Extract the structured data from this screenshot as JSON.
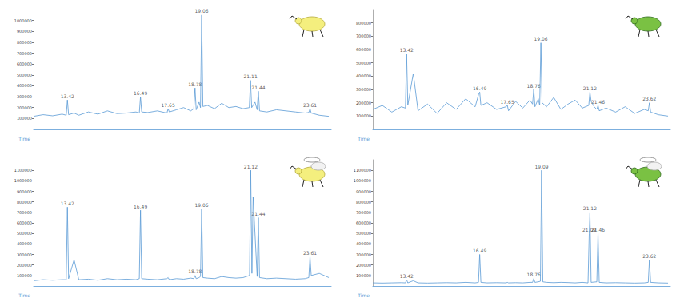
{
  "chart_data": [
    {
      "type": "line",
      "color": "#5b9bd5",
      "xlabel": "Time",
      "tick_labels": "y",
      "xlim": [
        12,
        24.5
      ],
      "ylim": [
        0,
        1100000
      ],
      "yticks": [
        100000,
        200000,
        300000,
        400000,
        500000,
        600000,
        700000,
        800000,
        900000,
        1000000
      ],
      "x": [
        12.0,
        12.4,
        12.8,
        13.2,
        13.37,
        13.42,
        13.47,
        13.7,
        13.9,
        14.3,
        14.7,
        15.1,
        15.5,
        15.9,
        16.3,
        16.44,
        16.49,
        16.54,
        16.8,
        17.2,
        17.6,
        17.65,
        17.7,
        18.0,
        18.3,
        18.6,
        18.73,
        18.78,
        18.83,
        18.95,
        19.01,
        19.06,
        19.11,
        19.3,
        19.6,
        19.9,
        20.2,
        20.5,
        20.8,
        21.06,
        21.11,
        21.16,
        21.3,
        21.39,
        21.44,
        21.49,
        21.8,
        22.2,
        22.6,
        23.0,
        23.4,
        23.56,
        23.61,
        23.66,
        24.0,
        24.4
      ],
      "values": [
        120000,
        135000,
        125000,
        140000,
        130000,
        270000,
        135000,
        150000,
        130000,
        160000,
        140000,
        170000,
        145000,
        150000,
        160000,
        150000,
        300000,
        160000,
        155000,
        170000,
        150000,
        190000,
        160000,
        180000,
        200000,
        170000,
        190000,
        380000,
        180000,
        250000,
        200000,
        1050000,
        210000,
        220000,
        190000,
        240000,
        200000,
        210000,
        190000,
        200000,
        450000,
        200000,
        250000,
        180000,
        350000,
        170000,
        160000,
        180000,
        170000,
        160000,
        150000,
        155000,
        190000,
        150000,
        130000,
        120000
      ],
      "annotations": [
        {
          "x": 13.42,
          "y": 270000,
          "text": "13.42"
        },
        {
          "x": 16.49,
          "y": 300000,
          "text": "16.49"
        },
        {
          "x": 17.65,
          "y": 190000,
          "text": "17.65"
        },
        {
          "x": 18.78,
          "y": 380000,
          "text": "18.78"
        },
        {
          "x": 19.06,
          "y": 1050000,
          "text": "19.06"
        },
        {
          "x": 21.11,
          "y": 450000,
          "text": "21.11"
        },
        {
          "x": 21.44,
          "y": 350000,
          "text": "21.44"
        },
        {
          "x": 23.61,
          "y": 190000,
          "text": "23.61"
        }
      ]
    },
    {
      "type": "line",
      "color": "#5b9bd5",
      "xlabel": "Time",
      "tick_labels": "y",
      "xlim": [
        12,
        24.5
      ],
      "ylim": [
        0,
        900000
      ],
      "yticks": [
        100000,
        200000,
        300000,
        400000,
        500000,
        600000,
        700000,
        800000
      ],
      "x": [
        12.0,
        12.4,
        12.8,
        13.2,
        13.37,
        13.42,
        13.47,
        13.7,
        13.9,
        14.3,
        14.7,
        15.1,
        15.5,
        15.9,
        16.3,
        16.44,
        16.49,
        16.54,
        16.8,
        17.2,
        17.6,
        17.65,
        17.7,
        18.0,
        18.3,
        18.6,
        18.71,
        18.76,
        18.81,
        18.95,
        19.01,
        19.06,
        19.11,
        19.3,
        19.6,
        19.9,
        20.2,
        20.5,
        20.8,
        21.07,
        21.12,
        21.17,
        21.3,
        21.41,
        21.46,
        21.51,
        21.8,
        22.2,
        22.6,
        23.0,
        23.4,
        23.57,
        23.62,
        23.67,
        24.0,
        24.4
      ],
      "values": [
        150000,
        180000,
        130000,
        170000,
        160000,
        570000,
        180000,
        420000,
        140000,
        190000,
        120000,
        200000,
        150000,
        230000,
        170000,
        260000,
        280000,
        180000,
        200000,
        150000,
        170000,
        180000,
        140000,
        210000,
        160000,
        220000,
        190000,
        300000,
        170000,
        230000,
        180000,
        650000,
        200000,
        170000,
        240000,
        150000,
        190000,
        220000,
        160000,
        180000,
        280000,
        210000,
        170000,
        150000,
        180000,
        140000,
        160000,
        130000,
        170000,
        120000,
        150000,
        140000,
        200000,
        130000,
        110000,
        100000
      ],
      "annotations": [
        {
          "x": 13.42,
          "y": 570000,
          "text": "13.42"
        },
        {
          "x": 16.49,
          "y": 280000,
          "text": "16.49"
        },
        {
          "x": 17.65,
          "y": 180000,
          "text": "17.65"
        },
        {
          "x": 18.76,
          "y": 300000,
          "text": "18.76"
        },
        {
          "x": 19.06,
          "y": 650000,
          "text": "19.06"
        },
        {
          "x": 21.12,
          "y": 280000,
          "text": "21.12"
        },
        {
          "x": 21.46,
          "y": 180000,
          "text": "21.46"
        },
        {
          "x": 23.62,
          "y": 200000,
          "text": "23.62"
        }
      ]
    },
    {
      "type": "line",
      "color": "#5b9bd5",
      "xlabel": "Time",
      "tick_labels": "y",
      "xlim": [
        12,
        24.5
      ],
      "ylim": [
        0,
        1200000
      ],
      "yticks": [
        100000,
        200000,
        300000,
        400000,
        500000,
        600000,
        700000,
        800000,
        900000,
        1000000,
        1100000
      ],
      "x": [
        12.0,
        12.4,
        12.8,
        13.2,
        13.37,
        13.42,
        13.47,
        13.7,
        13.9,
        14.3,
        14.7,
        15.1,
        15.5,
        15.9,
        16.3,
        16.44,
        16.49,
        16.54,
        16.8,
        17.2,
        17.6,
        17.65,
        17.7,
        18.0,
        18.3,
        18.6,
        18.73,
        18.78,
        18.83,
        18.95,
        19.01,
        19.06,
        19.11,
        19.3,
        19.6,
        19.9,
        20.2,
        20.5,
        20.8,
        21.07,
        21.12,
        21.17,
        21.22,
        21.39,
        21.44,
        21.49,
        21.8,
        22.2,
        22.6,
        23.0,
        23.4,
        23.56,
        23.61,
        23.66,
        24.0,
        24.4
      ],
      "values": [
        50000,
        60000,
        55000,
        60000,
        60000,
        750000,
        70000,
        250000,
        60000,
        65000,
        55000,
        70000,
        60000,
        65000,
        60000,
        70000,
        720000,
        70000,
        65000,
        60000,
        70000,
        80000,
        60000,
        70000,
        65000,
        75000,
        70000,
        100000,
        70000,
        80000,
        90000,
        730000,
        80000,
        75000,
        70000,
        90000,
        80000,
        75000,
        80000,
        100000,
        1100000,
        120000,
        850000,
        90000,
        650000,
        80000,
        70000,
        75000,
        70000,
        65000,
        70000,
        80000,
        280000,
        100000,
        120000,
        80000
      ],
      "annotations": [
        {
          "x": 13.42,
          "y": 750000,
          "text": "13.42"
        },
        {
          "x": 16.49,
          "y": 720000,
          "text": "16.49"
        },
        {
          "x": 18.78,
          "y": 100000,
          "text": "18.78"
        },
        {
          "x": 19.06,
          "y": 730000,
          "text": "19.06"
        },
        {
          "x": 21.12,
          "y": 1100000,
          "text": "21.12"
        },
        {
          "x": 21.44,
          "y": 650000,
          "text": "21.44"
        },
        {
          "x": 23.61,
          "y": 280000,
          "text": "23.61"
        }
      ]
    },
    {
      "type": "line",
      "color": "#5b9bd5",
      "xlabel": "Time",
      "tick_labels": "y",
      "xlim": [
        12,
        24.5
      ],
      "ylim": [
        0,
        1200000
      ],
      "yticks": [
        100000,
        200000,
        300000,
        400000,
        500000,
        600000,
        700000,
        800000,
        900000,
        1000000,
        1100000
      ],
      "x": [
        12.0,
        12.4,
        12.8,
        13.2,
        13.37,
        13.42,
        13.47,
        13.7,
        13.9,
        14.3,
        14.7,
        15.1,
        15.5,
        15.9,
        16.3,
        16.44,
        16.49,
        16.54,
        16.8,
        17.2,
        17.6,
        17.65,
        17.7,
        18.0,
        18.3,
        18.6,
        18.71,
        18.76,
        18.81,
        18.95,
        19.04,
        19.09,
        19.14,
        19.3,
        19.6,
        19.9,
        20.2,
        20.5,
        20.8,
        21.04,
        21.09,
        21.12,
        21.17,
        21.41,
        21.46,
        21.51,
        21.8,
        22.2,
        22.6,
        23.0,
        23.4,
        23.57,
        23.62,
        23.67,
        24.0,
        24.4
      ],
      "values": [
        30000,
        28000,
        30000,
        32000,
        30000,
        60000,
        30000,
        50000,
        30000,
        28000,
        30000,
        32000,
        30000,
        35000,
        30000,
        35000,
        300000,
        35000,
        30000,
        32000,
        30000,
        35000,
        30000,
        32000,
        30000,
        35000,
        35000,
        70000,
        35000,
        40000,
        45000,
        1100000,
        40000,
        35000,
        32000,
        35000,
        33000,
        30000,
        35000,
        30000,
        500000,
        700000,
        35000,
        40000,
        500000,
        35000,
        30000,
        32000,
        30000,
        28000,
        30000,
        35000,
        250000,
        35000,
        30000,
        28000
      ],
      "annotations": [
        {
          "x": 13.42,
          "y": 60000,
          "text": "13.42"
        },
        {
          "x": 16.49,
          "y": 300000,
          "text": "16.49"
        },
        {
          "x": 18.76,
          "y": 70000,
          "text": "18.76"
        },
        {
          "x": 19.09,
          "y": 1100000,
          "text": "19.09"
        },
        {
          "x": 21.09,
          "y": 500000,
          "text": "21.09"
        },
        {
          "x": 21.12,
          "y": 700000,
          "text": "21.12"
        },
        {
          "x": 21.46,
          "y": 500000,
          "text": "21.46"
        },
        {
          "x": 23.62,
          "y": 250000,
          "text": "23.62"
        }
      ]
    }
  ]
}
